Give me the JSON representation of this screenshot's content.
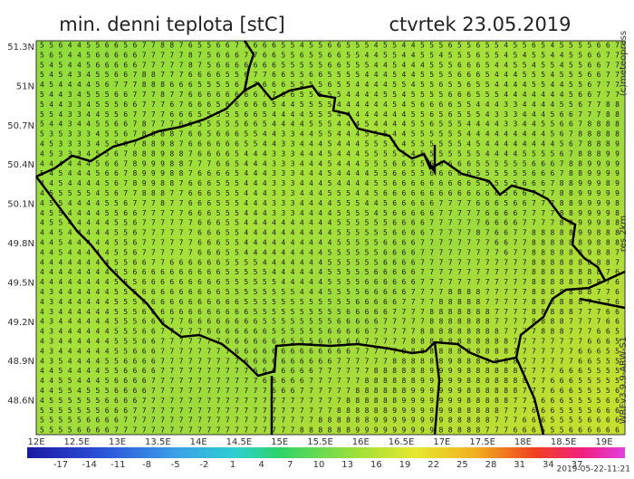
{
  "header": {
    "title": "min. denni teplota [stC]",
    "date": "ctvrtek 23.05.2019"
  },
  "side": {
    "copyright": "(c)meteopress",
    "resolution": "res.2km",
    "model": "WRFv3.9.9-ARW-S1"
  },
  "footer": {
    "timestamp": "2019-05-22-11:21"
  },
  "map": {
    "lat_labels": [
      "51.3N",
      "51N",
      "50.7N",
      "50.4N",
      "50.1N",
      "49.8N",
      "49.5N",
      "49.2N",
      "48.9N",
      "48.6N"
    ],
    "lon_labels": [
      "12E",
      "12.5E",
      "13E",
      "13.5E",
      "14E",
      "14.5E",
      "15E",
      "15.5E",
      "16E",
      "16.5E",
      "17E",
      "17.5E",
      "18E",
      "18.5E",
      "19E"
    ],
    "grid_rows": [
      "556445566567788765566776665545566555455445556556554556545555667",
      "565445666667777787566677665565566554455445545556554545544556677",
      "545445666667777787566666665555566555445444555666544554554556677",
      "545434556678877766665567766556655554445445555666544455545556677",
      "454444567778886665555677666555565544445545565565544445544556777",
      "544345556677787766666666776655555444455455556665554444444566777",
      "544334555667776766656666654455554444445456666554443344445567788",
      "554334455677776665555566544445554444444455656555433344456677788",
      "544344556678777665555566544445554445444455655544443344556678888",
      "535333455678888766566655443344554445554455555544444444456788888",
      "453333455678898766666655443344454445555455555545444444445678889",
      "453334556788898876666544433344454445555545555555444455556788899",
      "444444566789998877766544433344454445556655566665555556667889999",
      "545444566789998876666544433344454444556655666665555556667889999",
      "445444456789988766655544433344454444556666666665555566678899989",
      "455555456778887766655544433344455544566666666666665667778899999",
      "455444455677787766655544433344445554456666677776665667778899998",
      "455444455667777766655544433344445555456666677777666677778899998",
      "455444445567777776665544444444445555556666777777666677778899988",
      "445444445567777776665544444444445555556666777778766778888899888",
      "445444445567777776665544444444445555566667777777766778888889888",
      "445444445567777776665544444444455555566667777777776778888889887",
      "444444445566776666665555444444455555566667777777777778888888887",
      "444444445566666666665555544444455555666667777777777778888888876",
      "444444445556666666665555554444455556666667777777777778888888876",
      "434444445556666666665555555544455556666677778888777778888888776",
      "434444445556666666666655555555555566666777788888777778888887776",
      "434444445556666666666665555555555666667777888888877778888877766",
      "434444445556667766666666555555556666677777888888877778888777766",
      "434444445556677777666666655555566666777778888888887777888777665",
      "434444445556677777776666666555666667777788888888888777777776665",
      "434444445566677777777666666666666677777888888888888777777766655",
      "435444455666677777777766666666667777778888889888888877777766555",
      "445444455666677777777776666666777777888888999988888877776665555",
      "445544456666777777777777666667777778888889999988888887766655555",
      "445545556666777777777777766677777788888899999988888877766655556",
      "455555566667777777777777777777777888888999999988888777666555566",
      "555555566677777777777777777777778888889999999888887776665555666",
      "555556666777777777777777777777888888999999998888877766655556666",
      "555566667777777777777777777788888899999999988888777666555666666"
    ],
    "colorbar": {
      "labels": [
        -17,
        -14,
        -11,
        -8,
        -5,
        -2,
        1,
        4,
        7,
        10,
        13,
        16,
        19,
        22,
        25,
        28,
        31,
        34,
        37
      ]
    }
  }
}
